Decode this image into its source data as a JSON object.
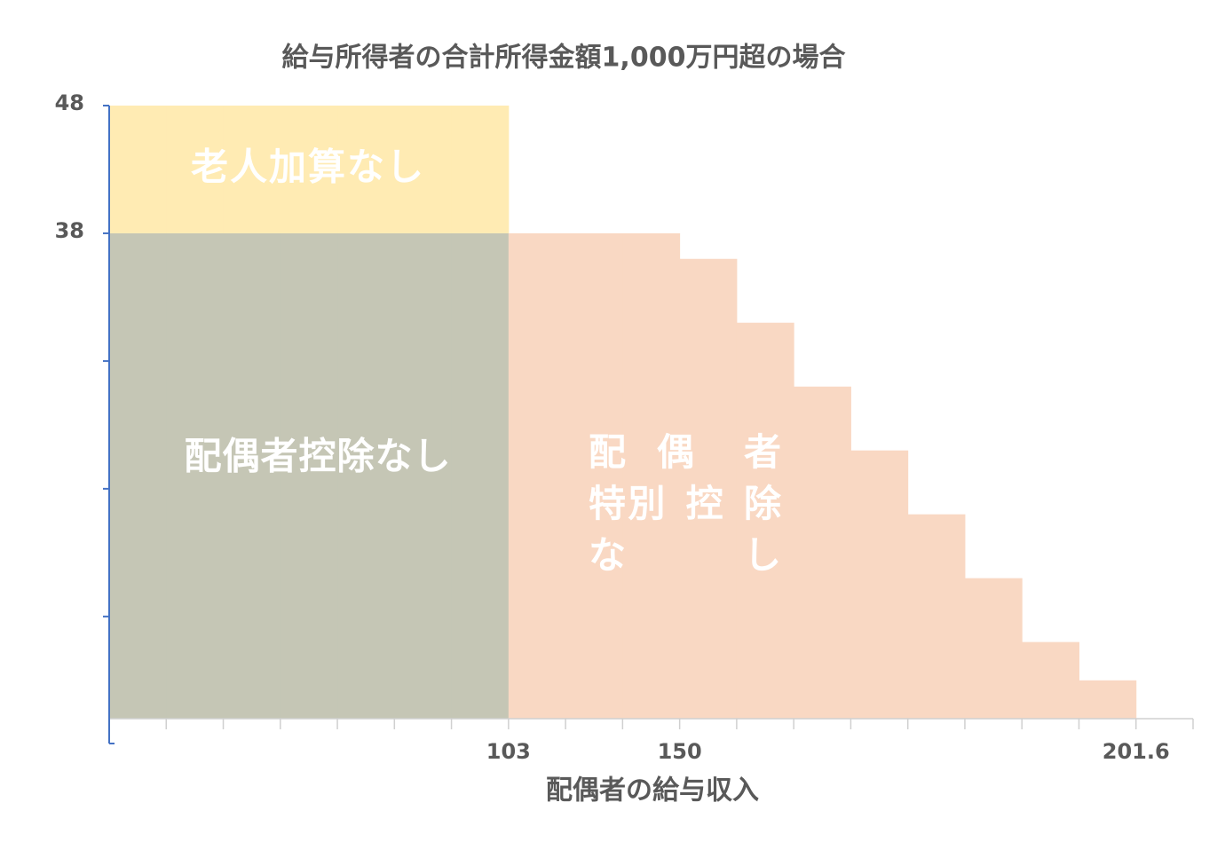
{
  "chart_data": {
    "type": "bar",
    "stacked": true,
    "title": "給与所得者の合計所得金額1,000万円超の場合",
    "x_label": "配偶者の給与収入",
    "xtick_labels": [
      null,
      null,
      null,
      null,
      null,
      null,
      null,
      "103",
      null,
      null,
      "150",
      null,
      null,
      null,
      null,
      null,
      null,
      null,
      "201.6",
      null
    ],
    "series": [
      {
        "name": "配偶者控除なし",
        "color": "#c5c6b5",
        "values": [
          38,
          38,
          38,
          38,
          38,
          38,
          38,
          null,
          null,
          null,
          null,
          null,
          null,
          null,
          null,
          null,
          null,
          null
        ]
      },
      {
        "name": "老人加算なし",
        "color": "#ffebb3",
        "values": [
          10,
          10,
          10,
          10,
          10,
          10,
          10,
          null,
          null,
          null,
          null,
          null,
          null,
          null,
          null,
          null,
          null,
          null
        ]
      },
      {
        "name": "配偶者特別控除なし",
        "color": "#f9d8c3",
        "values": [
          null,
          null,
          null,
          null,
          null,
          null,
          null,
          38,
          38,
          38,
          36,
          31,
          26,
          21,
          16,
          11,
          6,
          3
        ]
      }
    ],
    "ylim": [
      0,
      48
    ],
    "yticks": [
      {
        "value": 8,
        "label": null
      },
      {
        "value": 18,
        "label": null
      },
      {
        "value": 28,
        "label": null
      },
      38,
      48
    ]
  }
}
